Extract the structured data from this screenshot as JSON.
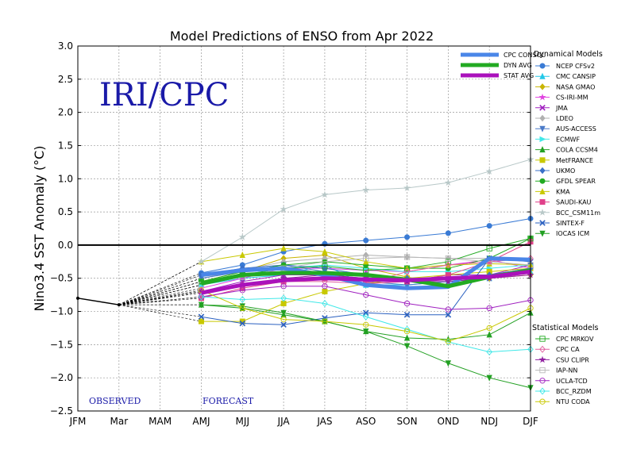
{
  "chart_data": {
    "type": "line",
    "title": "Model Predictions of ENSO from Apr 2022",
    "ylabel": "Nino3.4 SST Anomaly (°C)",
    "xlabel": "",
    "categories": [
      "JFM",
      "Mar",
      "MAM",
      "AMJ",
      "MJJ",
      "JJA",
      "JAS",
      "ASO",
      "SON",
      "OND",
      "NDJ",
      "DJF"
    ],
    "ylim": [
      -2.5,
      3.0
    ],
    "yticks": [
      "3.0",
      "2.5",
      "2.0",
      "1.5",
      "1.0",
      "0.5",
      "0.0",
      "−0.5",
      "−1.0",
      "−1.5",
      "−2.0",
      "−2.5"
    ],
    "grid": true,
    "watermark": "IRI/CPC",
    "observed_label": "OBSERVED",
    "forecast_label": "FORECAST",
    "observed": [
      -0.8,
      -0.9
    ],
    "forecast_start_index": 3,
    "consensus_series": [
      {
        "name": "CPC CONSOL",
        "color": "#4a86e8",
        "values": [
          -0.45,
          -0.38,
          -0.35,
          -0.45,
          -0.6,
          -0.65,
          -0.63,
          -0.2,
          -0.22
        ]
      },
      {
        "name": "DYN AVG",
        "color": "#22aa22",
        "values": [
          -0.58,
          -0.45,
          -0.42,
          -0.42,
          -0.45,
          -0.52,
          -0.62,
          -0.48,
          -0.38
        ]
      },
      {
        "name": "STAT AVG",
        "color": "#aa11bb",
        "values": [
          -0.72,
          -0.6,
          -0.53,
          -0.5,
          -0.52,
          -0.53,
          -0.5,
          -0.48,
          -0.4
        ]
      }
    ],
    "dynamical_header": "Dynamical Models",
    "dynamical_models": [
      {
        "name": "NCEP CFSv2",
        "color": "#3a7bd5",
        "marker": "circle",
        "values": [
          -0.42,
          -0.3,
          -0.1,
          0.02,
          0.07,
          0.12,
          0.18,
          0.29,
          0.4
        ]
      },
      {
        "name": "CMC CANSIP",
        "color": "#22c8e8",
        "marker": "tri-up",
        "values": [
          -0.6,
          -0.5,
          -0.45,
          -0.3,
          -0.6,
          -0.6,
          -0.55,
          -0.5,
          -0.4
        ]
      },
      {
        "name": "NASA GMAO",
        "color": "#c8b400",
        "marker": "diamond",
        "values": [
          -0.55,
          -0.4,
          -0.2,
          -0.15,
          -0.35,
          -0.48,
          -0.6,
          -0.5,
          -0.45
        ]
      },
      {
        "name": "CS-IRI-MM",
        "color": "#e040e0",
        "marker": "star",
        "values": [
          -0.65,
          -0.5,
          -0.35,
          -0.35,
          -0.38,
          -0.4,
          -0.3,
          -0.22,
          -0.35
        ]
      },
      {
        "name": "JMA",
        "color": "#a020c0",
        "marker": "x",
        "values": [
          -0.7,
          -0.55,
          -0.45,
          -0.45,
          -0.5,
          -0.55,
          -0.45,
          -0.45,
          -0.3
        ]
      },
      {
        "name": "LDEO",
        "color": "#b0b0b0",
        "marker": "diamond",
        "values": [
          -0.5,
          -0.38,
          -0.25,
          -0.2,
          -0.15,
          -0.18,
          -0.2,
          -0.2,
          -0.22
        ]
      },
      {
        "name": "AUS-ACCESS",
        "color": "#4a7ac8",
        "marker": "tri-down",
        "values": [
          -0.5,
          -0.4,
          -0.3,
          -0.4,
          -0.55,
          -0.6,
          -0.55,
          -0.45,
          -0.35
        ]
      },
      {
        "name": "ECMWF",
        "color": "#40e8e8",
        "marker": "tri-right",
        "values": [
          -0.6,
          -0.45,
          -0.35,
          -0.3,
          -0.35,
          -0.4,
          -0.4,
          -0.35,
          -0.3
        ]
      },
      {
        "name": "COLA CCSM4",
        "color": "#22a022",
        "marker": "tri-up",
        "values": [
          -0.9,
          -0.95,
          -1.05,
          -1.15,
          -1.3,
          -1.4,
          -1.42,
          -1.35,
          -1.02
        ]
      },
      {
        "name": "MetFRANCE",
        "color": "#c8c800",
        "marker": "square",
        "values": [
          -1.15,
          -1.15,
          -0.88,
          -0.7,
          -0.58,
          -0.5,
          -0.45,
          -0.4,
          -0.35
        ]
      },
      {
        "name": "UKMO",
        "color": "#3a70c8",
        "marker": "diamond",
        "values": [
          -0.45,
          -0.35,
          -0.3,
          -0.35,
          -0.45,
          -0.5,
          -0.5,
          -0.45,
          -0.35
        ]
      },
      {
        "name": "GFDL SPEAR",
        "color": "#22aa22",
        "marker": "circle",
        "values": [
          -0.55,
          -0.4,
          -0.3,
          -0.25,
          -0.3,
          -0.35,
          -0.35,
          -0.2,
          0.1
        ]
      },
      {
        "name": "KMA",
        "color": "#c8c800",
        "marker": "tri-up",
        "values": [
          -0.25,
          -0.15,
          -0.05,
          -0.1,
          -0.25,
          -0.35,
          -0.3,
          -0.28,
          -0.3
        ]
      },
      {
        "name": "SAUDI-KAU",
        "color": "#e0408a",
        "marker": "square",
        "values": [
          -0.8,
          -0.65,
          -0.55,
          -0.5,
          -0.58,
          -0.55,
          -0.45,
          -0.25,
          0.05
        ]
      },
      {
        "name": "BCC_CSM11m",
        "color": "#b8c8c8",
        "marker": "star",
        "values": [
          -0.25,
          0.12,
          0.54,
          0.76,
          0.83,
          0.86,
          0.94,
          1.11,
          1.29
        ]
      },
      {
        "name": "SINTEX-F",
        "color": "#2a60c0",
        "marker": "x",
        "values": [
          -1.08,
          -1.18,
          -1.2,
          -1.1,
          -1.02,
          -1.05,
          -1.05,
          -0.2,
          -0.25
        ]
      },
      {
        "name": "IOCAS ICM",
        "color": "#22a022",
        "marker": "tri-down",
        "values": [
          -0.9,
          -0.92,
          -1.02,
          -1.15,
          -1.3,
          -1.52,
          -1.78,
          -2.0,
          -2.15
        ]
      }
    ],
    "statistical_header": "Statistical Models",
    "statistical_models": [
      {
        "name": "CPC MRKOV",
        "color": "#22aa22",
        "marker": "square-open",
        "values": [
          -0.55,
          -0.45,
          -0.35,
          -0.32,
          -0.38,
          -0.35,
          -0.25,
          -0.05,
          0.1
        ]
      },
      {
        "name": "CPC CA",
        "color": "#e060a0",
        "marker": "diamond-open",
        "values": [
          -0.72,
          -0.6,
          -0.55,
          -0.55,
          -0.58,
          -0.4,
          -0.3,
          -0.25,
          -0.2
        ]
      },
      {
        "name": "CSU CLIPR",
        "color": "#9020a0",
        "marker": "star",
        "values": [
          -0.7,
          -0.6,
          -0.5,
          -0.45,
          -0.5,
          -0.55,
          -0.55,
          -0.5,
          -0.45
        ]
      },
      {
        "name": "IAP-NN",
        "color": "#b8b8b8",
        "marker": "square-open",
        "values": [
          -0.6,
          -0.48,
          -0.35,
          -0.25,
          -0.2,
          -0.18,
          -0.2,
          -0.25,
          -0.3
        ]
      },
      {
        "name": "UCLA-TCD",
        "color": "#a020c0",
        "marker": "circle-open",
        "values": [
          -0.78,
          -0.68,
          -0.62,
          -0.62,
          -0.75,
          -0.88,
          -0.97,
          -0.95,
          -0.83
        ]
      },
      {
        "name": "BCC_RZDM",
        "color": "#40e8e8",
        "marker": "diamond-open",
        "values": [
          -0.78,
          -0.82,
          -0.8,
          -0.88,
          -1.08,
          -1.27,
          -1.46,
          -1.61,
          -1.57
        ]
      },
      {
        "name": "NTU CODA",
        "color": "#c8c800",
        "marker": "circle-open",
        "values": [
          -0.68,
          -0.95,
          -1.12,
          -1.15,
          -1.2,
          -1.3,
          -1.45,
          -1.25,
          -0.95
        ]
      }
    ]
  }
}
